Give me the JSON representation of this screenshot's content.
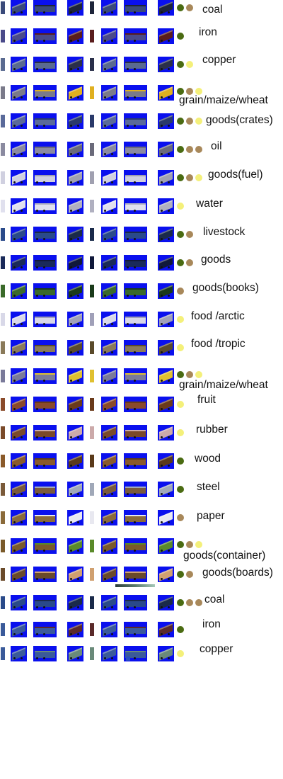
{
  "title": "",
  "colors": {
    "background": "#0a10ee",
    "dot_green": "#4a6b12",
    "dot_brown": "#a8885a",
    "dot_yellow": "#f4f07a"
  },
  "rows": [
    {
      "label": "coal",
      "dots": [
        "green",
        "brown"
      ],
      "wagon": "#3a4a7a",
      "dark": "#1d243a"
    },
    {
      "label": "iron",
      "dots": [
        "green"
      ],
      "wagon": "#4a4a8a",
      "dark": "#5a1d1d"
    },
    {
      "label": "copper",
      "dots": [
        "green",
        "yellow"
      ],
      "wagon": "#5a6a90",
      "dark": "#2a2f4a"
    },
    {
      "label": "grain/maize/wheat",
      "dots": [
        "green",
        "brown",
        "yellow"
      ],
      "wagon": "#7a7a8a",
      "dark": "#e0b020",
      "wrap": true
    },
    {
      "label": "goods(crates)",
      "dots": [
        "green",
        "brown",
        "yellow"
      ],
      "wagon": "#5a6a9a",
      "dark": "#2a3a6a"
    },
    {
      "label": "oil",
      "dots": [
        "green",
        "brown",
        "brown"
      ],
      "wagon": "#8a8aa0",
      "dark": "#6a6a7a"
    },
    {
      "label": "goods(fuel)",
      "dots": [
        "green",
        "brown",
        "yellow"
      ],
      "wagon": "#d0d0e0",
      "dark": "#a0a0b0"
    },
    {
      "label": "water",
      "dots": [
        "yellow"
      ],
      "wagon": "#e0e0ee",
      "dark": "#b0b0c0"
    },
    {
      "label": "livestock",
      "dots": [
        "green",
        "brown"
      ],
      "wagon": "#2a4a8a",
      "dark": "#1a2a4a"
    },
    {
      "label": "goods",
      "dots": [
        "green",
        "brown"
      ],
      "wagon": "#1a2a5a",
      "dark": "#10183a"
    },
    {
      "label": "goods(books)",
      "dots": [
        "brown"
      ],
      "wagon": "#3a6a2a",
      "dark": "#1a3a1a"
    },
    {
      "label": "food /arctic",
      "dots": [
        "yellow"
      ],
      "wagon": "#d8d8e8",
      "dark": "#a0a0b8"
    },
    {
      "label": "food /tropic",
      "dots": [
        "yellow"
      ],
      "wagon": "#8a7a5a",
      "dark": "#5a4a2a"
    },
    {
      "label": "grain/maize/wheat",
      "dots": [
        "green",
        "brown",
        "yellow"
      ],
      "wagon": "#7a7a9a",
      "dark": "#e0c030",
      "wrap": true
    },
    {
      "label": "fruit",
      "dots": [
        "yellow"
      ],
      "wagon": "#8a4a2a",
      "dark": "#6a3a1a"
    },
    {
      "label": "rubber",
      "dots": [
        "yellow"
      ],
      "wagon": "#7a4a2a",
      "dark": "#ccaaaa"
    },
    {
      "label": "wood",
      "dots": [
        "green"
      ],
      "wagon": "#8a5a2a",
      "dark": "#5a3a1a"
    },
    {
      "label": "steel",
      "dots": [
        "green"
      ],
      "wagon": "#7a5a3a",
      "dark": "#a0a8b8"
    },
    {
      "label": "paper",
      "dots": [
        "brown"
      ],
      "wagon": "#8a6a3a",
      "dark": "#e8e8f0"
    },
    {
      "label": "goods(container)",
      "dots": [
        "green",
        "brown",
        "yellow"
      ],
      "wagon": "#7a5a2a",
      "dark": "#5a8a2a",
      "wrap": true
    },
    {
      "label": "goods(boards)",
      "dots": [
        "green",
        "brown"
      ],
      "wagon": "#6a4a2a",
      "dark": "#d0a070"
    },
    {
      "label": "coal",
      "dots": [
        "green",
        "brown",
        "brown"
      ],
      "wagon": "#2a4a8a",
      "dark": "#1a2a4a"
    },
    {
      "label": "iron",
      "dots": [
        "green"
      ],
      "wagon": "#3a5a9a",
      "dark": "#5a2a2a"
    },
    {
      "label": "copper",
      "dots": [
        "yellow"
      ],
      "wagon": "#3a5a9a",
      "dark": "#6a8a7a"
    }
  ]
}
